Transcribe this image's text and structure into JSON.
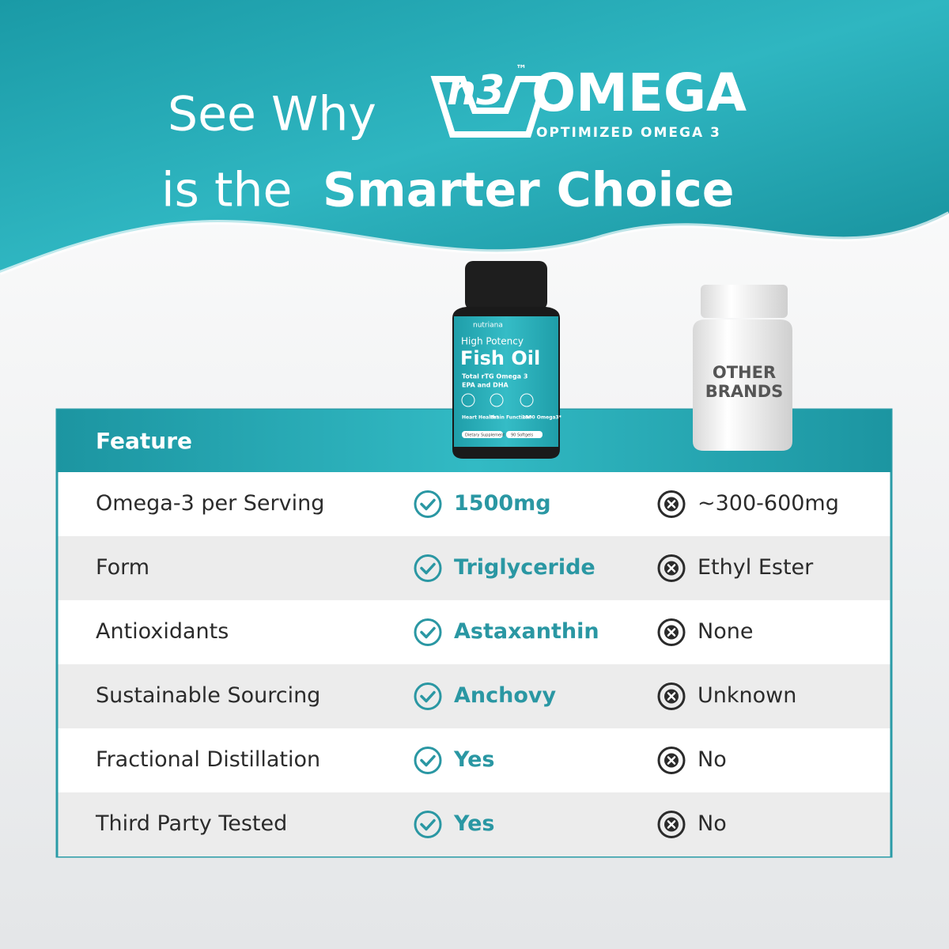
{
  "header": {
    "lead": "See Why",
    "logo_mark": "n3",
    "logo_tm": "™",
    "logo_word": "OMEGA",
    "logo_tagline": "OPTIMIZED OMEGA 3",
    "line2_regular": "is the",
    "line2_bold": "Smarter Choice"
  },
  "product": {
    "brand": "nutriana",
    "potency": "High Potency",
    "name": "Fish Oil",
    "line1": "Total rTG Omega 3",
    "line2": "EPA and DHA",
    "benefits": [
      "Heart Health*",
      "Brain Function*",
      "1500 Omega3*"
    ],
    "footer_left": "Dietary Supplement",
    "footer_right": "90 Softgels"
  },
  "other_bottle": {
    "label_line1": "OTHER",
    "label_line2": "BRANDS"
  },
  "table": {
    "header": "Feature",
    "rows": [
      [
        "Omega-3 per Serving",
        "1500mg",
        "~300-600mg"
      ],
      [
        "Form",
        "Triglyceride",
        "Ethyl Ester"
      ],
      [
        "Antioxidants",
        "Astaxanthin",
        "None"
      ],
      [
        "Sustainable Sourcing",
        "Anchovy",
        "Unknown"
      ],
      [
        "Fractional Distillation",
        "Yes",
        "No"
      ],
      [
        "Third Party Tested",
        "Yes",
        "No"
      ]
    ]
  }
}
